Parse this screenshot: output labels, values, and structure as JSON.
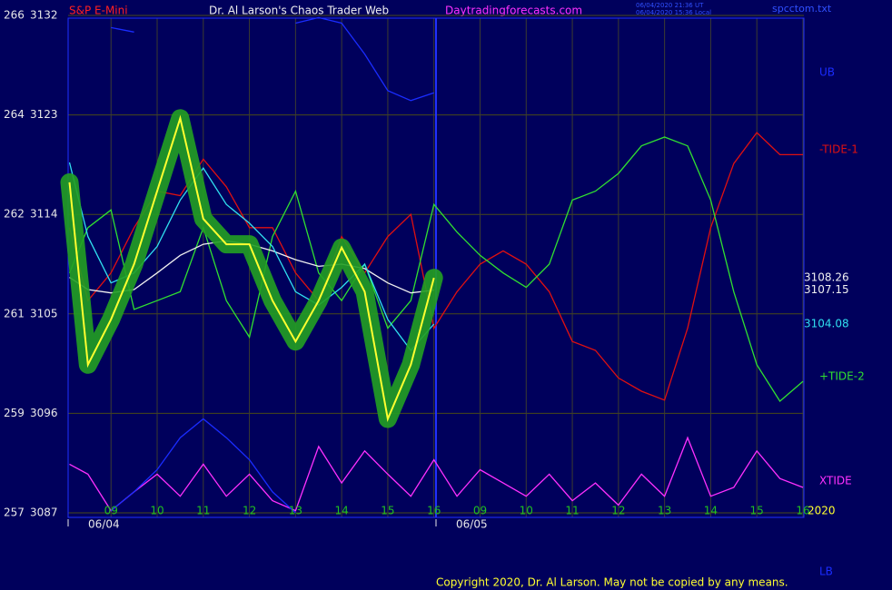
{
  "chart_data": {
    "type": "line",
    "instrument": "S&P E-Mini",
    "title": "Dr. Al Larson's Chaos Trader Web",
    "site": "Daytradingforecasts.com",
    "timestamps": [
      "06/04/2020 21:36 UT",
      "06/04/2020 15:36 Local"
    ],
    "file": "spcctom.txt",
    "copyright": "Copyright 2020, Dr. Al Larson. May not be copied by any means.",
    "year_label": "2020",
    "dates": [
      "06/04",
      "06/05"
    ],
    "ylim": [
      3087,
      3132
    ],
    "yticks": [
      3087,
      3096,
      3105,
      3114,
      3123,
      3132
    ],
    "y_alt_labels": [
      "257",
      "259",
      "261",
      "262",
      "264",
      "266"
    ],
    "xlim": [
      8.07,
      24.02
    ],
    "xticks": [
      {
        "value": 9,
        "label": "09"
      },
      10,
      11,
      12,
      13,
      14,
      15,
      16,
      {
        "value": 17,
        "label": "09"
      },
      {
        "value": 18,
        "label": "10"
      },
      {
        "value": 19,
        "label": "11"
      },
      {
        "value": 20,
        "label": "12"
      },
      {
        "value": 21,
        "label": "13"
      },
      {
        "value": 22,
        "label": "14"
      },
      {
        "value": 23,
        "label": "15"
      },
      {
        "value": 24,
        "label": "16"
      }
    ],
    "grid": true,
    "x": [
      8.1,
      8.5,
      9,
      9.5,
      10,
      10.5,
      11,
      11.5,
      12,
      12.5,
      13,
      13.5,
      14,
      14.5,
      15,
      15.5,
      16,
      16.5,
      17,
      17.5,
      18,
      18.5,
      19,
      19.5,
      20,
      20.5,
      21,
      21.5,
      22,
      22.5,
      23,
      23.5,
      24
    ],
    "series": [
      {
        "name": "UB",
        "color": "#1a2cff",
        "label_pos": "top",
        "values": [
          null,
          null,
          3130.9,
          3130.5,
          null,
          null,
          null,
          null,
          null,
          null,
          3131.3,
          3131.8,
          3131.3,
          3128.5,
          3125.2,
          3124.3,
          3125.0,
          null,
          null,
          null,
          null,
          null,
          null,
          null,
          null,
          null,
          null,
          null,
          null,
          null,
          null,
          null,
          null
        ]
      },
      {
        "name": "-TIDE-1",
        "color": "#e01010",
        "label_pos": "upper",
        "values": [
          3112.8,
          3106.2,
          3108.7,
          3112.8,
          3116.1,
          3115.7,
          3119.0,
          3116.5,
          3112.8,
          3112.8,
          3108.7,
          3106.2,
          3112.0,
          3108.7,
          3112.0,
          3114.0,
          3103.7,
          3107.0,
          3109.5,
          3110.7,
          3109.5,
          3107.0,
          3102.5,
          3101.7,
          3099.2,
          3098.0,
          3097.2,
          3103.7,
          3112.8,
          3118.6,
          3121.4,
          3119.4,
          3119.4
        ]
      },
      {
        "name": "+TIDE-2",
        "color": "#30e030",
        "label_pos": "lower",
        "values": [
          3108.7,
          3112.8,
          3114.4,
          3105.4,
          3106.2,
          3107.0,
          3112.8,
          3106.2,
          3102.9,
          3112.0,
          3116.1,
          3108.7,
          3106.2,
          3109.5,
          3103.7,
          3106.2,
          3114.9,
          3112.4,
          3110.3,
          3108.7,
          3107.4,
          3109.5,
          3115.3,
          3116.1,
          3117.7,
          3120.2,
          3121.0,
          3120.2,
          3115.3,
          3107.0,
          3100.4,
          3097.1,
          3098.9
        ]
      },
      {
        "name": "XTIDE",
        "color": "#ff30ff",
        "label_pos": "bottom",
        "values": [
          3091.4,
          3090.5,
          3087.2,
          3088.9,
          3090.5,
          3088.5,
          3091.4,
          3088.5,
          3090.5,
          3088.1,
          3087.2,
          3093.0,
          3089.7,
          3092.6,
          3090.5,
          3088.5,
          3091.8,
          3088.5,
          3090.9,
          3089.7,
          3088.5,
          3090.5,
          3088.1,
          3089.7,
          3087.7,
          3090.5,
          3088.5,
          3093.8,
          3088.5,
          3089.3,
          3092.6,
          3090.1,
          3089.3
        ]
      },
      {
        "name": "LB",
        "color": "#1a2cff",
        "label_pos": "foot",
        "values": [
          null,
          null,
          3087.2,
          3088.9,
          3090.9,
          3093.8,
          3095.5,
          3093.8,
          3091.8,
          3088.9,
          3087.0,
          null,
          null,
          null,
          null,
          null,
          null,
          null,
          null,
          null,
          null,
          null,
          null,
          null,
          null,
          null,
          null,
          null,
          null,
          null,
          null,
          null,
          null
        ]
      },
      {
        "color": "#f0f0f0",
        "last_value": 3107.15,
        "values": [
          3108.3,
          3107.2,
          3106.9,
          3107.2,
          3108.7,
          3110.3,
          3111.3,
          3111.6,
          3111.3,
          3110.7,
          3109.9,
          3109.3,
          3109.5,
          3109.1,
          3107.8,
          3106.9,
          3107.15,
          null,
          null,
          null,
          null,
          null,
          null,
          null,
          null,
          null,
          null,
          null,
          null,
          null,
          null,
          null,
          null
        ]
      },
      {
        "color": "#30e0f0",
        "last_value": 3104.08,
        "values": [
          3118.7,
          3112.0,
          3107.8,
          3108.7,
          3111.1,
          3115.3,
          3118.2,
          3114.9,
          3113.2,
          3111.1,
          3107.0,
          3105.8,
          3107.4,
          3109.5,
          3104.5,
          3101.7,
          3104.08,
          null,
          null,
          null,
          null,
          null,
          null,
          null,
          null,
          null,
          null,
          null,
          null,
          null,
          null,
          null,
          null
        ]
      },
      {
        "color": "#ffff30",
        "band_color": "#22a022",
        "last_value": 3108.26,
        "values": [
          3116.9,
          3100.4,
          3104.5,
          3109.5,
          3116.1,
          3122.7,
          3113.6,
          3111.3,
          3111.3,
          3106.2,
          3102.5,
          3106.2,
          3111.0,
          3107.0,
          3095.5,
          3100.4,
          3108.26,
          null,
          null,
          null,
          null,
          null,
          null,
          null,
          null,
          null,
          null,
          null,
          null,
          null,
          null,
          null,
          null
        ]
      }
    ]
  }
}
